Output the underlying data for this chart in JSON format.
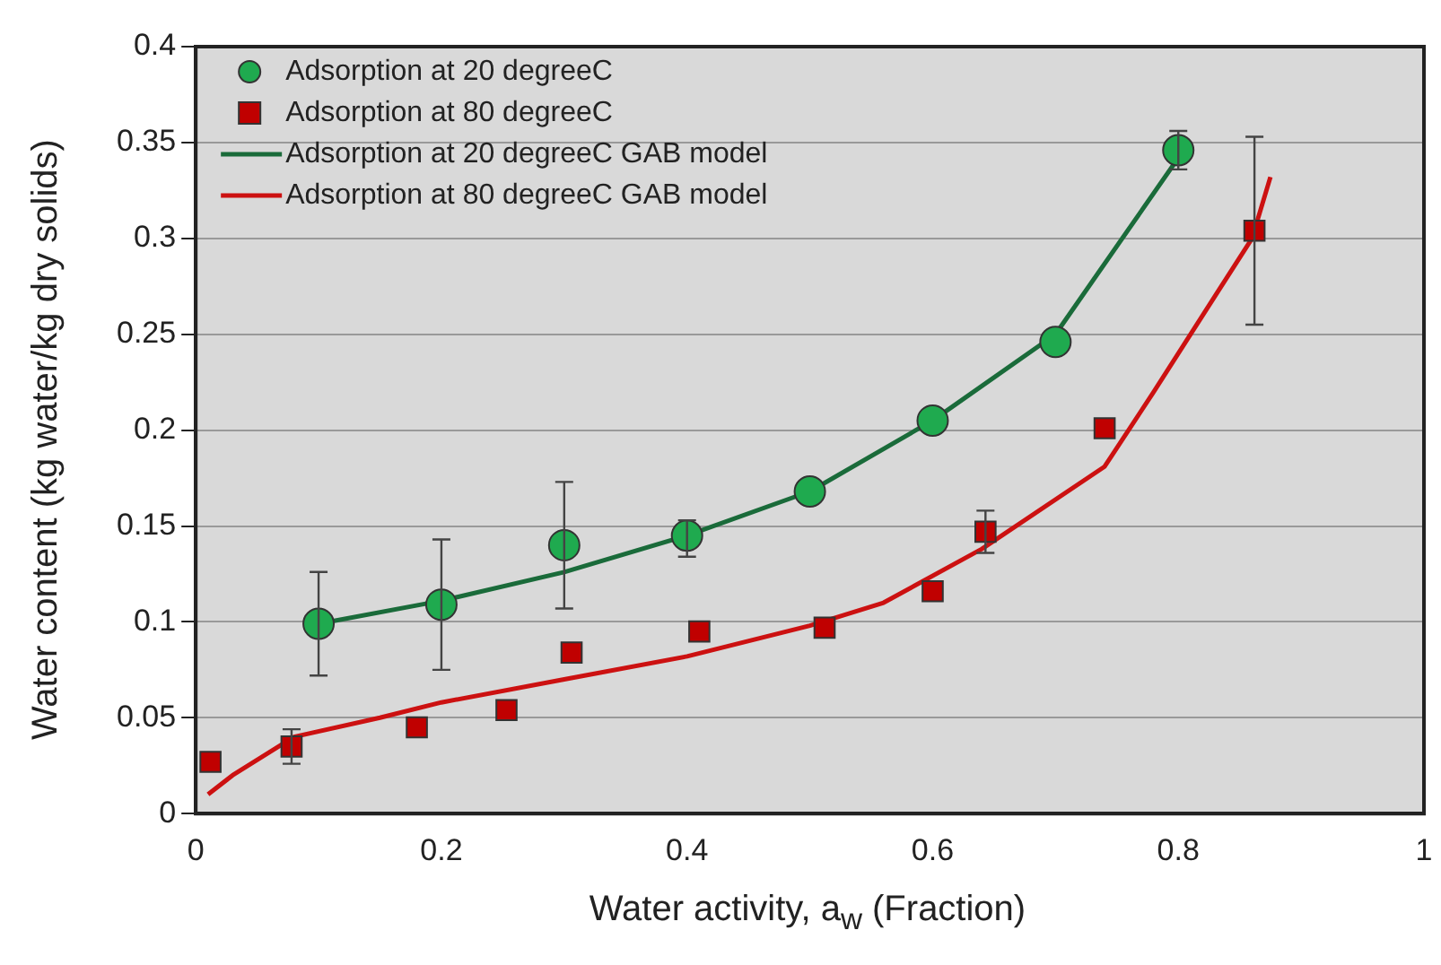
{
  "chart_data": {
    "type": "scatter",
    "xlabel": "Water activity, a$_{w}$ (Fraction)",
    "ylabel": "Water content (kg water/kg dry solids)",
    "xlim": [
      0,
      1
    ],
    "xticks": [
      0,
      0.2,
      0.4,
      0.6,
      0.8,
      1
    ],
    "ylim": [
      0,
      0.4
    ],
    "yticks": [
      0,
      0.05,
      0.1,
      0.15,
      0.2,
      0.25,
      0.3,
      0.35,
      0.4
    ],
    "grid": "y",
    "legend": "top left",
    "series": [
      {
        "name": "Adsorption at 20 degreeC",
        "marker": "circle",
        "color": "#1faa4f",
        "x": [
          0.1,
          0.2,
          0.3,
          0.4,
          0.5,
          0.6,
          0.7,
          0.8
        ],
        "values": [
          0.099,
          0.109,
          0.14,
          0.145,
          0.168,
          0.205,
          0.246,
          0.346
        ],
        "errors": [
          0.027,
          0.034,
          0.033,
          [
            0.134,
            0.153
          ],
          null,
          null,
          null,
          [
            0.336,
            0.356
          ]
        ]
      },
      {
        "name": "Adsorption at 80 degreeC",
        "marker": "square",
        "color": "#c00000",
        "x": [
          0.012,
          0.078,
          0.18,
          0.253,
          0.306,
          0.41,
          0.512,
          0.6,
          0.643,
          0.74,
          0.862
        ],
        "values": [
          0.027,
          0.035,
          0.045,
          0.054,
          0.084,
          0.095,
          0.097,
          0.116,
          0.147,
          0.201,
          0.304
        ],
        "errors": [
          null,
          0.009,
          null,
          null,
          null,
          null,
          null,
          null,
          0.011,
          null,
          0.049
        ]
      },
      {
        "name": "Adsorption at 20 degreeC GAB model",
        "type": "line",
        "marker": "none",
        "color": "#1a6b3a",
        "x": [
          0.1,
          0.2,
          0.3,
          0.4,
          0.5,
          0.6,
          0.7,
          0.8
        ],
        "values": [
          0.099,
          0.111,
          0.126,
          0.145,
          0.168,
          0.205,
          0.25,
          0.342
        ]
      },
      {
        "name": "Adsorption at 80 degreeC GAB model",
        "type": "line",
        "marker": "none",
        "color": "#cc1111",
        "x": [
          0.01,
          0.03,
          0.08,
          0.15,
          0.2,
          0.3,
          0.4,
          0.5,
          0.56,
          0.64,
          0.74,
          0.78,
          0.83,
          0.86,
          0.875
        ],
        "values": [
          0.01,
          0.02,
          0.04,
          0.05,
          0.058,
          0.07,
          0.082,
          0.098,
          0.11,
          0.138,
          0.181,
          0.22,
          0.27,
          0.3,
          0.332
        ]
      }
    ]
  }
}
